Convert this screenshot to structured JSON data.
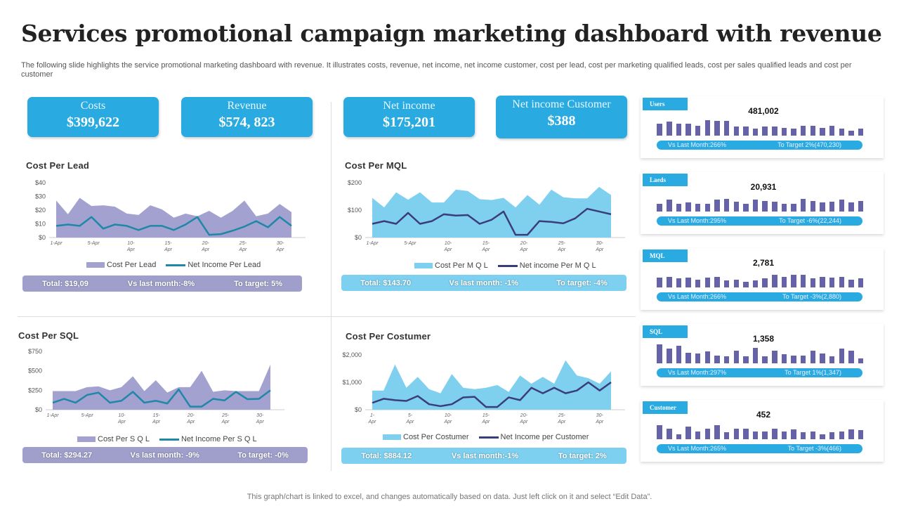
{
  "title": "Services promotional campaign marketing dashboard with revenue",
  "subtitle": "The following slide highlights the service promotional marketing dashboard with revenue. It illustrates costs, revenue, net income, net income customer, cost per lead, cost per marketing qualified leads, cost per sales qualified leads and cost per customer",
  "kpis": [
    {
      "label": "Costs",
      "value": "$399,622"
    },
    {
      "label": "Revenue",
      "value": "$574, 823"
    },
    {
      "label": "Net income",
      "value": "$175,201"
    },
    {
      "label": "Net income Customer",
      "value": "$388"
    }
  ],
  "colors": {
    "accent": "#29abe2",
    "purple_area": "#a3a1cf",
    "teal_line": "#1f87a8",
    "blue_area": "#7fd0ef",
    "navy_line": "#3b3d7a",
    "bar": "#6562a8"
  },
  "chart_data": [
    {
      "type": "area",
      "title": "Cost Per Lead",
      "yticks": [
        "$0",
        "$10",
        "$20",
        "$30",
        "$40"
      ],
      "ylim": [
        0,
        40
      ],
      "xticks": [
        "1-Apr",
        "5-Apr",
        "10-\nApr",
        "15-\nApr",
        "20-\nApr",
        "25-\nApr",
        "30-\nApr"
      ],
      "series": [
        {
          "name": "Cost Per Lead",
          "kind": "area",
          "values": [
            27,
            17,
            29,
            23,
            23.5,
            22.5,
            17.5,
            16.5,
            23.5,
            20.5,
            14.5,
            17.5,
            15.5,
            19.5,
            14.5,
            19.5,
            27,
            15.5,
            17.5,
            24.5,
            18.5
          ]
        },
        {
          "name": "Net Income Per Lead",
          "kind": "line",
          "values": [
            8.5,
            9.5,
            8.5,
            15,
            6.5,
            9.5,
            8.5,
            5.5,
            8.5,
            8.5,
            5.5,
            9.5,
            15,
            2,
            2.5,
            5,
            8,
            12,
            7.5,
            15,
            8.5
          ]
        }
      ],
      "summary": {
        "total": "Total: $19,09",
        "vs": "Vs last month:-8%",
        "target": "To target: 5%"
      }
    },
    {
      "type": "area",
      "title": "Cost Per MQL",
      "yticks": [
        "$0",
        "$100",
        "$200"
      ],
      "ylim": [
        0,
        200
      ],
      "xticks": [
        "1-Apr",
        "5-Apr",
        "10-\nApr",
        "15-\nApr",
        "20-\nApr",
        "25-\nApr",
        "30-\nApr"
      ],
      "series": [
        {
          "name": "Cost Per M Q L",
          "kind": "area",
          "values": [
            145,
            110,
            165,
            138,
            165,
            128,
            128,
            175,
            170,
            140,
            137,
            145,
            110,
            155,
            120,
            175,
            147,
            143,
            143,
            185,
            155
          ]
        },
        {
          "name": "Net income Per M Q L",
          "kind": "line",
          "values": [
            50,
            60,
            50,
            90,
            50,
            60,
            85,
            80,
            82,
            50,
            65,
            95,
            10,
            10,
            60,
            57,
            52,
            70,
            105,
            95,
            85
          ]
        }
      ],
      "summary": {
        "total": "Total: $143.70",
        "vs": "Vs last month: -1%",
        "target": "To target: -4%"
      }
    },
    {
      "type": "area",
      "title": "Cost Per SQL",
      "yticks": [
        "$0",
        "$250",
        "$500",
        "$750"
      ],
      "ylim": [
        0,
        750
      ],
      "xticks": [
        "1-Apr",
        "5-Apr",
        "10-\nApr",
        "15-\nApr",
        "20-\nApr",
        "25-\nApr",
        "30-\nApr"
      ],
      "series": [
        {
          "name": "Cost Per S Q L",
          "kind": "area",
          "values": [
            240,
            240,
            240,
            290,
            300,
            250,
            290,
            430,
            240,
            380,
            220,
            290,
            290,
            500,
            230,
            250,
            240,
            240,
            240,
            580
          ]
        },
        {
          "name": "Net Income Per S Q L",
          "kind": "line",
          "values": [
            90,
            140,
            90,
            190,
            220,
            90,
            115,
            230,
            90,
            115,
            80,
            260,
            40,
            40,
            140,
            120,
            230,
            135,
            140,
            250
          ]
        }
      ],
      "summary": {
        "total": "Total: $294.27",
        "vs": "Vs last month: -9%",
        "target": "To target: -0%"
      }
    },
    {
      "type": "area",
      "title": "Cost Per Costumer",
      "yticks": [
        "$0",
        "$1,000",
        "$2,000"
      ],
      "ylim": [
        0,
        2000
      ],
      "xticks": [
        "1-\nApr",
        "5-\nApr",
        "10-\nApr",
        "15-\nApr",
        "20-\nApr",
        "25-\nApr",
        "30-\nApr"
      ],
      "series": [
        {
          "name": "Cost Per Costumer",
          "kind": "area",
          "values": [
            700,
            700,
            1650,
            800,
            1200,
            750,
            600,
            1300,
            800,
            750,
            800,
            900,
            650,
            1250,
            950,
            1200,
            950,
            1800,
            1250,
            1150,
            950,
            1400
          ]
        },
        {
          "name": "Net Income per Customer",
          "kind": "line",
          "values": [
            250,
            400,
            350,
            320,
            500,
            200,
            130,
            200,
            450,
            470,
            100,
            100,
            450,
            350,
            800,
            600,
            800,
            600,
            700,
            1000,
            700,
            1000
          ]
        }
      ],
      "summary": {
        "total": "Total: $884.12",
        "vs": "Vs last month:-1%",
        "target": "To target: 2%"
      }
    }
  ],
  "cards": [
    {
      "label": "Users",
      "value": "481,002",
      "vs": "Vs Last Month:266%",
      "target": "To Target  2%(470,230)",
      "bars": [
        6,
        7,
        6,
        6,
        5,
        8,
        7.5,
        7.5,
        4.5,
        4.5,
        3.5,
        4.5,
        4.5,
        4,
        3.5,
        5,
        5,
        4,
        5,
        3.5,
        2.5,
        3.5
      ]
    },
    {
      "label": "Laeds",
      "value": "20,931",
      "vs": "Vs Last Month:295%",
      "target": "To Target  -6%(22,244)",
      "bars": [
        4,
        6,
        4,
        4.5,
        4,
        4,
        6,
        6.5,
        5,
        4,
        6,
        5.5,
        5,
        4,
        4,
        6.5,
        5.5,
        4.5,
        5,
        6,
        4.5,
        5.5
      ]
    },
    {
      "label": "MQL",
      "value": "2,781",
      "vs": "Vs Last Month:266%",
      "target": "To Target  -3%(2,880)",
      "bars": [
        5,
        5.5,
        4.5,
        5,
        4,
        5,
        5.5,
        3.5,
        4,
        3,
        3.5,
        4.5,
        6.5,
        5.5,
        6.5,
        6.5,
        4.5,
        5.5,
        5,
        5.5,
        4,
        4.5
      ]
    },
    {
      "label": "SQL",
      "value": "1,358",
      "vs": "Vs Last Month:297%",
      "target": "To Target  1%(1,347)",
      "bars": [
        9.5,
        7.5,
        9,
        5.5,
        5,
        6,
        4,
        3.5,
        6.5,
        3.5,
        8,
        3.5,
        6.5,
        4.5,
        4,
        4,
        6.5,
        5,
        3.5,
        7.5,
        6.5,
        2.5
      ]
    },
    {
      "label": "Customer",
      "value": "452",
      "vs": "Vs Last Month:265%",
      "target": "To Target  -3%(466)",
      "bars": [
        7,
        5.5,
        2.5,
        6.5,
        4,
        5.5,
        7,
        3.5,
        5.5,
        5.5,
        4,
        4,
        5.5,
        4,
        5,
        3.5,
        4,
        2.5,
        3.5,
        4,
        5,
        4.5
      ]
    }
  ],
  "footer": "This graph/chart is linked to excel,  and changes automatically based on data. Just left click on it and select “Edit Data”."
}
